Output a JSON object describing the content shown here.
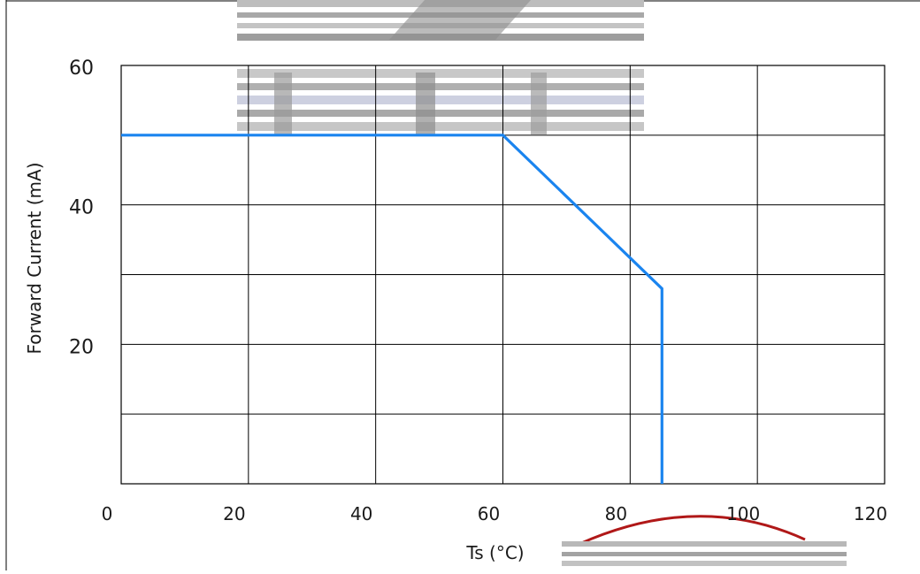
{
  "chart_data": {
    "type": "line",
    "title": "",
    "xlabel": "Ts (°C)",
    "ylabel": "Forward Current (mA)",
    "xlim": [
      0,
      120
    ],
    "ylim": [
      0,
      60
    ],
    "x_ticks": [
      "0",
      "20",
      "40",
      "60",
      "80",
      "100",
      "120"
    ],
    "y_ticks": [
      "20",
      "40",
      "60"
    ],
    "x_grid": [
      0,
      20,
      40,
      60,
      80,
      100,
      120
    ],
    "y_grid": [
      0,
      10,
      20,
      30,
      40,
      50,
      60
    ],
    "grid": true,
    "series": [
      {
        "color": "#1a84ef",
        "points": [
          [
            0,
            50
          ],
          [
            60,
            50
          ],
          [
            85,
            28
          ],
          [
            85,
            0
          ]
        ]
      }
    ]
  },
  "colors": {
    "line": "#1a84ef",
    "grid": "#000000",
    "frame": "#000000"
  }
}
